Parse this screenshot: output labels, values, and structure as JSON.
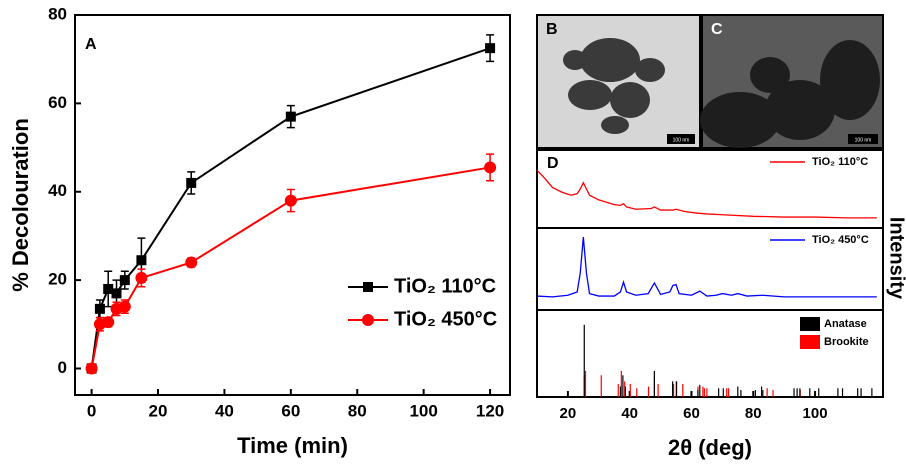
{
  "chart_data": [
    {
      "type": "line",
      "label": "A",
      "xlabel": "Time (min)",
      "ylabel": "% Decolouration",
      "xlim": [
        -5,
        126
      ],
      "ylim": [
        -6,
        80
      ],
      "xticks": [
        0,
        20,
        40,
        60,
        80,
        100,
        120
      ],
      "yticks": [
        0,
        20,
        40,
        60,
        80
      ],
      "legend": "lower right",
      "series": [
        {
          "name": "TiO₂ 110°C",
          "color": "#000000",
          "marker": "square",
          "x": [
            0,
            2.5,
            5,
            7.5,
            10,
            15,
            30,
            60,
            120
          ],
          "values": [
            0,
            13.5,
            18,
            17,
            20,
            24.5,
            42,
            57,
            72.5
          ],
          "errors": [
            1,
            2,
            4,
            3,
            2,
            5,
            2.5,
            2.5,
            3
          ]
        },
        {
          "name": "TiO₂ 450°C",
          "color": "#ff0000",
          "marker": "circle",
          "x": [
            0,
            2.5,
            5,
            7.5,
            10,
            15,
            30,
            60,
            120
          ],
          "values": [
            0,
            10,
            10.5,
            13.5,
            14,
            20.5,
            24,
            38,
            45.5
          ],
          "errors": [
            1,
            1.5,
            1,
            1.5,
            1.5,
            2,
            1,
            2.5,
            3
          ]
        }
      ]
    },
    {
      "type": "line",
      "label": "D",
      "xlim": [
        10,
        122
      ],
      "ylim": [
        0,
        100
      ],
      "legend": "upper right",
      "series": [
        {
          "name": "TiO₂ 110°C",
          "color": "#ff0000",
          "x": [
            10,
            12,
            15,
            18,
            21,
            23,
            24,
            25,
            26,
            27,
            30,
            35,
            37,
            38,
            39,
            42,
            47,
            48,
            50,
            54,
            55,
            58,
            62,
            65,
            70,
            80,
            90,
            100,
            110,
            120
          ],
          "values": [
            74,
            66,
            52,
            46,
            42,
            44,
            50,
            58,
            50,
            42,
            36,
            30,
            29,
            31,
            27,
            24,
            25,
            27,
            23,
            23,
            24,
            21,
            19,
            18,
            17,
            15,
            14,
            14,
            13,
            13
          ]
        }
      ]
    },
    {
      "type": "line",
      "ylabel": "Intensity",
      "xlim": [
        10,
        122
      ],
      "ylim": [
        0,
        100
      ],
      "legend": "upper right",
      "series": [
        {
          "name": "TiO₂ 450°C",
          "color": "#0000ff",
          "x": [
            10,
            15,
            20,
            23,
            24,
            25,
            26,
            27,
            30,
            35,
            37,
            38,
            39,
            42,
            46,
            48,
            50,
            53,
            54,
            55,
            56,
            60,
            62.7,
            65,
            68,
            70,
            73,
            75,
            78,
            83,
            90,
            100,
            110,
            120
          ],
          "values": [
            17,
            16,
            18,
            22,
            45,
            89,
            45,
            20,
            17,
            17,
            22,
            34,
            22,
            18,
            20,
            33,
            19,
            22,
            30,
            31,
            20,
            18,
            23,
            17,
            18,
            20,
            18,
            20,
            17,
            18,
            16,
            16,
            16,
            16
          ]
        }
      ]
    },
    {
      "type": "stem",
      "xlabel": "2θ (deg)",
      "xlim": [
        10,
        122
      ],
      "ylim": [
        0,
        100
      ],
      "xticks": [
        20,
        40,
        60,
        80,
        100
      ],
      "legend": "upper right",
      "series": [
        {
          "name": "Brookite",
          "color": "#ff0000",
          "x": [
            25.3,
            25.7,
            30.8,
            36.3,
            37.3,
            38.4,
            40.2,
            42.3,
            46.1,
            48.0,
            49.2,
            54.2,
            55.2,
            57.2,
            62.1,
            63.7,
            64.2,
            65.0,
            71.4,
            72.0,
            84.5,
            86.4,
            95.2
          ],
          "values": [
            25,
            30,
            25,
            15,
            30,
            18,
            15,
            10,
            12,
            28,
            15,
            15,
            18,
            15,
            12,
            12,
            10,
            10,
            10,
            10,
            10,
            8,
            8
          ]
        },
        {
          "name": "Anatase",
          "color": "#000000",
          "x": [
            25.3,
            37.0,
            37.8,
            38.6,
            48.0,
            53.9,
            55.1,
            62.1,
            62.7,
            68.8,
            70.3,
            75.0,
            76.0,
            80.7,
            82.7,
            83.1,
            93.2,
            94.2,
            95.1,
            98.3,
            101.2,
            107.4,
            108.9,
            113.8,
            114.9,
            118.4
          ],
          "values": [
            83,
            12,
            25,
            12,
            30,
            18,
            18,
            8,
            14,
            10,
            10,
            12,
            8,
            8,
            12,
            8,
            10,
            10,
            10,
            10,
            10,
            10,
            10,
            10,
            10,
            10
          ]
        }
      ]
    }
  ],
  "images": [
    {
      "label": "B",
      "scale_bar": "100 nm"
    },
    {
      "label": "C",
      "scale_bar": "100 nm"
    }
  ]
}
